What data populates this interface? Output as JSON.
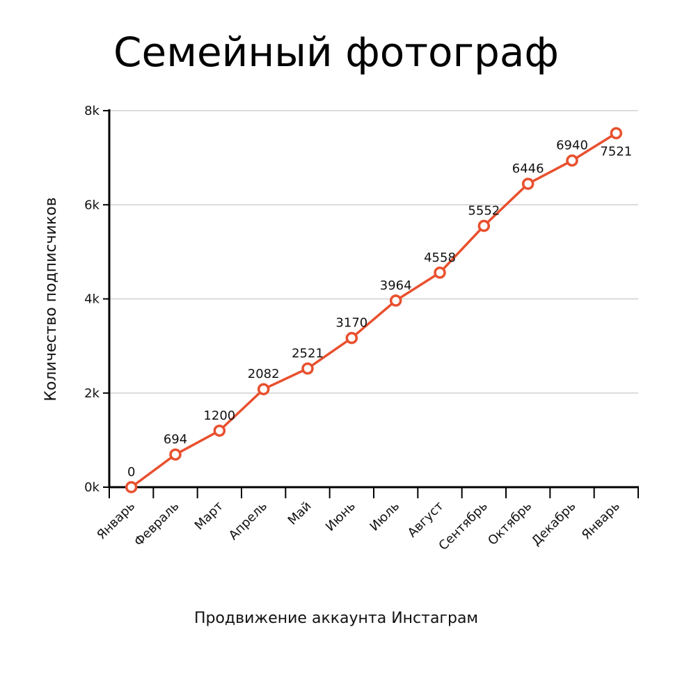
{
  "chart_data": {
    "type": "line",
    "title": "Семейный фотограф",
    "xlabel": "Продвижение аккаунта Инстаграм",
    "ylabel": "Количество подписчиков",
    "categories": [
      "Январь",
      "Февраль",
      "Март",
      "Апрель",
      "Май",
      "Июнь",
      "Июль",
      "Август",
      "Сентябрь",
      "Октябрь",
      "Декабрь",
      "Январь"
    ],
    "series": [
      {
        "values": [
          0,
          694,
          1200,
          2082,
          2521,
          3170,
          3964,
          4558,
          5552,
          6446,
          6940,
          7521
        ],
        "color": "#e8502e"
      }
    ],
    "data_labels": [
      "0",
      "694",
      "1200",
      "2082",
      "2521",
      "3170",
      "3964",
      "4558",
      "5552",
      "6446",
      "6940",
      "7521"
    ],
    "ylim": [
      0,
      8000
    ],
    "yticks": [
      0,
      2000,
      4000,
      6000,
      8000
    ],
    "ytick_labels": [
      "0k",
      "2k",
      "4k",
      "6k",
      "8k"
    ],
    "grid": true,
    "legend": false
  }
}
